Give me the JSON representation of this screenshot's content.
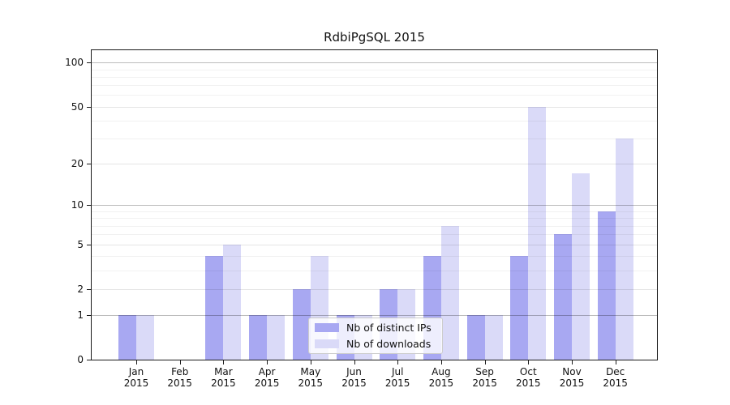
{
  "title": "RdbiPgSQL 2015",
  "colors": {
    "distinct_ips_bar": "#a8a8f2",
    "downloads_bar": "#dadaf8",
    "axis_line": "#1a1a1a",
    "grid_major": "#bfbfbf",
    "grid_labeled": "#e6e6e6",
    "grid_minor": "#f0f0f0",
    "legend_border": "#cccccc"
  },
  "legend": {
    "entries": [
      "Nb of distinct IPs",
      "Nb of downloads"
    ]
  },
  "chart_data": {
    "type": "bar",
    "title": "RdbiPgSQL 2015",
    "categories": [
      "Jan",
      "Feb",
      "Mar",
      "Apr",
      "May",
      "Jun",
      "Jul",
      "Aug",
      "Sep",
      "Oct",
      "Nov",
      "Dec"
    ],
    "year_label": "2015",
    "series": [
      {
        "name": "Nb of distinct IPs",
        "color": "#a8a8f2",
        "values": [
          1,
          0,
          4,
          1,
          2,
          1,
          2,
          4,
          1,
          4,
          6,
          9
        ]
      },
      {
        "name": "Nb of downloads",
        "color": "#dadaf8",
        "values": [
          1,
          0,
          5,
          1,
          4,
          1,
          2,
          7,
          1,
          50,
          17,
          30
        ]
      }
    ],
    "xlabel": "",
    "ylabel": "",
    "yscale": "log10(1+x)",
    "ylim": [
      0,
      125
    ],
    "ytick_values": [
      0,
      1,
      2,
      5,
      10,
      20,
      50,
      100
    ],
    "ytick_major_lines": [
      1,
      10,
      100
    ],
    "ytick_minor_lines": [
      3,
      4,
      6,
      7,
      8,
      9,
      30,
      40,
      60,
      70,
      80,
      90
    ],
    "grid": true,
    "legend_position": "inside lower center"
  }
}
